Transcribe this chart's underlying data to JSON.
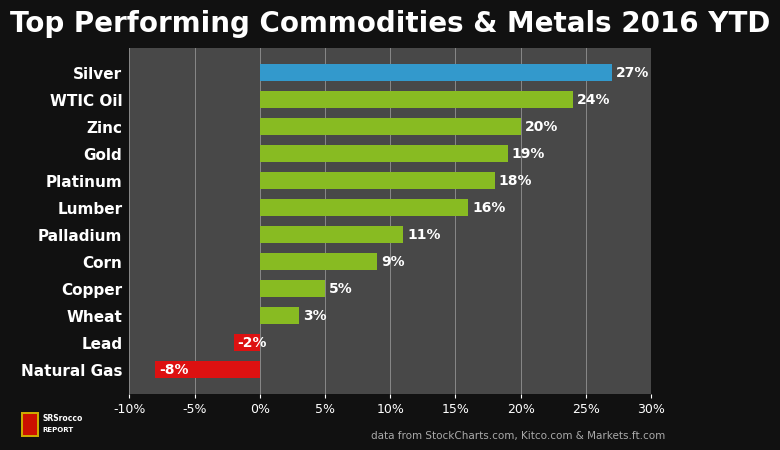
{
  "title": "Top Performing Commodities & Metals 2016 YTD",
  "categories": [
    "Natural Gas",
    "Lead",
    "Wheat",
    "Copper",
    "Corn",
    "Palladium",
    "Lumber",
    "Platinum",
    "Gold",
    "Zinc",
    "WTIC Oil",
    "Silver"
  ],
  "values": [
    -8,
    -2,
    3,
    5,
    9,
    11,
    16,
    18,
    19,
    20,
    24,
    27
  ],
  "colors": [
    "#dd1111",
    "#dd1111",
    "#88bb22",
    "#88bb22",
    "#88bb22",
    "#88bb22",
    "#88bb22",
    "#88bb22",
    "#88bb22",
    "#88bb22",
    "#88bb22",
    "#3399cc"
  ],
  "plot_bg_color": "#484848",
  "fig_bg_color": "#111111",
  "text_color": "#ffffff",
  "xlim": [
    -10,
    30
  ],
  "xticks": [
    -10,
    -5,
    0,
    5,
    10,
    15,
    20,
    25,
    30
  ],
  "xtick_labels": [
    "-10%",
    "-5%",
    "0%",
    "5%",
    "10%",
    "15%",
    "20%",
    "25%",
    "30%"
  ],
  "footer_text": "data from StockCharts.com, Kitco.com & Markets.ft.com",
  "title_fontsize": 20,
  "label_fontsize": 11,
  "value_fontsize": 10,
  "tick_fontsize": 9,
  "bar_height": 0.65
}
